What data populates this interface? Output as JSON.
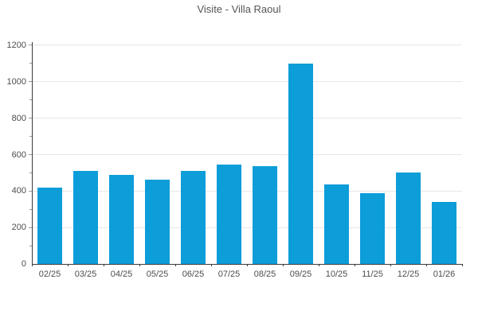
{
  "title": "Visite - Villa Raoul",
  "colors": {
    "bar": "#0d9dd9",
    "grid": "#e7e7e7",
    "axis": "#3c3c3c",
    "tick": "#999999",
    "text": "#4d4d4d",
    "title_text": "#555555",
    "background": "#ffffff"
  },
  "chart_data": {
    "type": "bar",
    "title": "Visite - Villa Raoul",
    "categories": [
      "02/25",
      "03/25",
      "04/25",
      "05/25",
      "06/25",
      "07/25",
      "08/25",
      "09/25",
      "10/25",
      "11/25",
      "12/25",
      "01/26"
    ],
    "values": [
      420,
      510,
      490,
      465,
      510,
      545,
      535,
      1100,
      435,
      390,
      500,
      340
    ],
    "xlabel": "",
    "ylabel": "",
    "ylim": [
      0,
      1200
    ],
    "yticks": [
      0,
      200,
      400,
      600,
      800,
      1000,
      1200
    ],
    "minor_ytick_step": 100,
    "grid": true,
    "legend": "none",
    "series_name": "Visite"
  }
}
